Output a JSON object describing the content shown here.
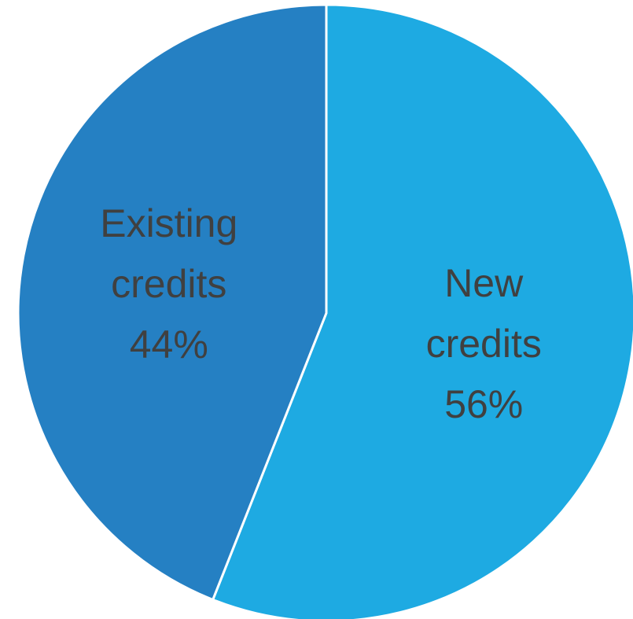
{
  "chart_data": {
    "type": "pie",
    "title": "",
    "slices": [
      {
        "label_lines": [
          "New",
          "credits"
        ],
        "percent_label": "56%",
        "value": 56,
        "color": "#1EAAE2"
      },
      {
        "label_lines": [
          "Existing",
          "credits"
        ],
        "percent_label": "44%",
        "value": 44,
        "color": "#2580C3"
      }
    ],
    "start_angle_deg": 0,
    "direction": "clockwise",
    "legend": "none",
    "data_labels": "inside"
  }
}
